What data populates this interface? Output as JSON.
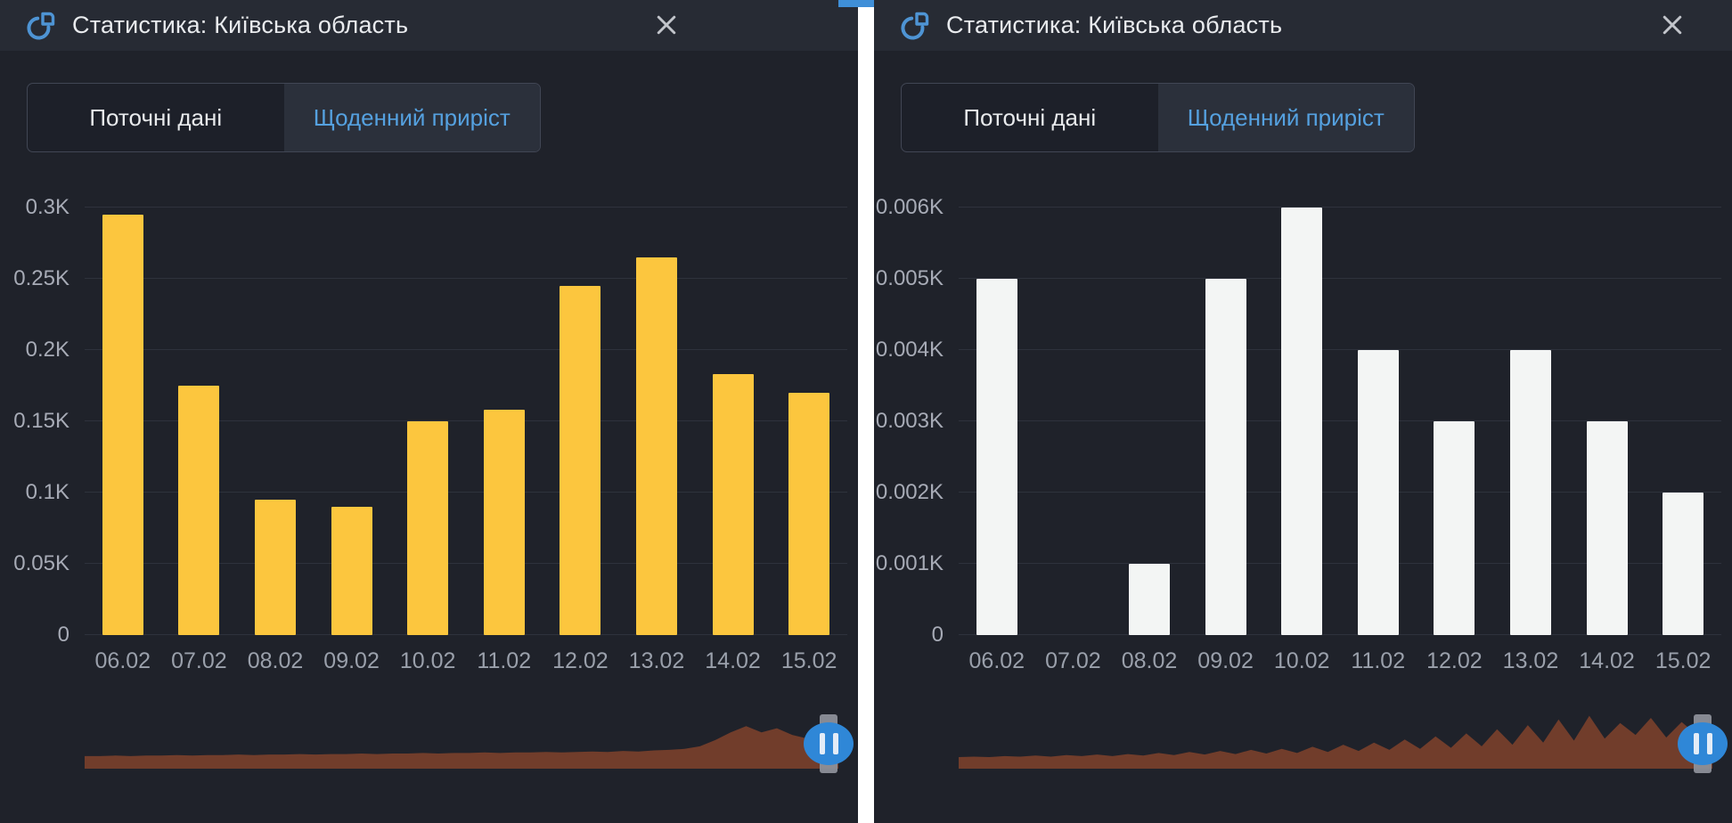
{
  "colors": {
    "panel_bg": "#1f222a",
    "header_bg": "#272b34",
    "divider": "#ffffff",
    "accent_blue": "#55a1e0",
    "icon_blue": "#4e94d4",
    "bar_yellow": "#fcc63e",
    "bar_white": "#f3f5f4",
    "scrubber_maroon": "#713d2b",
    "handle_blue": "#2f87d7"
  },
  "panels": [
    {
      "header": {
        "icon": "pie-chart-icon",
        "title": "Статистика: Київська область"
      },
      "tabs": [
        {
          "label": "Поточні дані",
          "active": false
        },
        {
          "label": "Щоденний приріст",
          "active": true
        }
      ],
      "scrubber_heights": [
        0.14,
        0.14,
        0.15,
        0.14,
        0.15,
        0.15,
        0.16,
        0.15,
        0.16,
        0.16,
        0.17,
        0.16,
        0.17,
        0.17,
        0.18,
        0.17,
        0.18,
        0.18,
        0.19,
        0.18,
        0.19,
        0.19,
        0.2,
        0.19,
        0.2,
        0.2,
        0.21,
        0.2,
        0.21,
        0.21,
        0.22,
        0.21,
        0.22,
        0.23,
        0.22,
        0.24,
        0.23,
        0.25,
        0.26,
        0.28,
        0.33,
        0.45,
        0.6,
        0.72,
        0.6,
        0.68,
        0.55,
        0.48,
        0.52,
        0.45
      ]
    },
    {
      "header": {
        "icon": "pie-chart-icon",
        "title": "Статистика: Київська область"
      },
      "tabs": [
        {
          "label": "Поточні дані",
          "active": false
        },
        {
          "label": "Щоденний приріст",
          "active": true
        }
      ],
      "scrubber_heights": [
        0.12,
        0.13,
        0.12,
        0.14,
        0.13,
        0.15,
        0.13,
        0.16,
        0.14,
        0.17,
        0.14,
        0.18,
        0.15,
        0.2,
        0.16,
        0.22,
        0.17,
        0.24,
        0.18,
        0.26,
        0.19,
        0.28,
        0.2,
        0.32,
        0.22,
        0.36,
        0.24,
        0.4,
        0.26,
        0.46,
        0.28,
        0.52,
        0.3,
        0.58,
        0.33,
        0.66,
        0.36,
        0.74,
        0.4,
        0.85,
        0.44,
        0.92,
        0.48,
        0.78,
        0.55,
        0.88,
        0.5,
        0.8,
        0.55,
        0.6
      ]
    }
  ],
  "chart_data": [
    {
      "type": "bar",
      "panel": "left",
      "categories": [
        "06.02",
        "07.02",
        "08.02",
        "09.02",
        "10.02",
        "11.02",
        "12.02",
        "13.02",
        "14.02",
        "15.02"
      ],
      "values": [
        0.295,
        0.175,
        0.095,
        0.09,
        0.15,
        0.158,
        0.245,
        0.265,
        0.183,
        0.17
      ],
      "yticks": [
        "0",
        "0.05K",
        "0.1K",
        "0.15K",
        "0.2K",
        "0.25K",
        "0.3K"
      ],
      "ylim": [
        0,
        0.3
      ],
      "xlabel": "",
      "ylabel": "",
      "grid": true,
      "legend": false,
      "bar_color": "#fcc63e"
    },
    {
      "type": "bar",
      "panel": "right",
      "categories": [
        "06.02",
        "07.02",
        "08.02",
        "09.02",
        "10.02",
        "11.02",
        "12.02",
        "13.02",
        "14.02",
        "15.02"
      ],
      "values": [
        0.005,
        0,
        0.001,
        0.005,
        0.006,
        0.004,
        0.003,
        0.004,
        0.003,
        0.002
      ],
      "yticks": [
        "0",
        "0.001K",
        "0.002K",
        "0.003K",
        "0.004K",
        "0.005K",
        "0.006K"
      ],
      "ylim": [
        0,
        0.006
      ],
      "xlabel": "",
      "ylabel": "",
      "grid": true,
      "legend": false,
      "bar_color": "#f3f5f4"
    }
  ]
}
